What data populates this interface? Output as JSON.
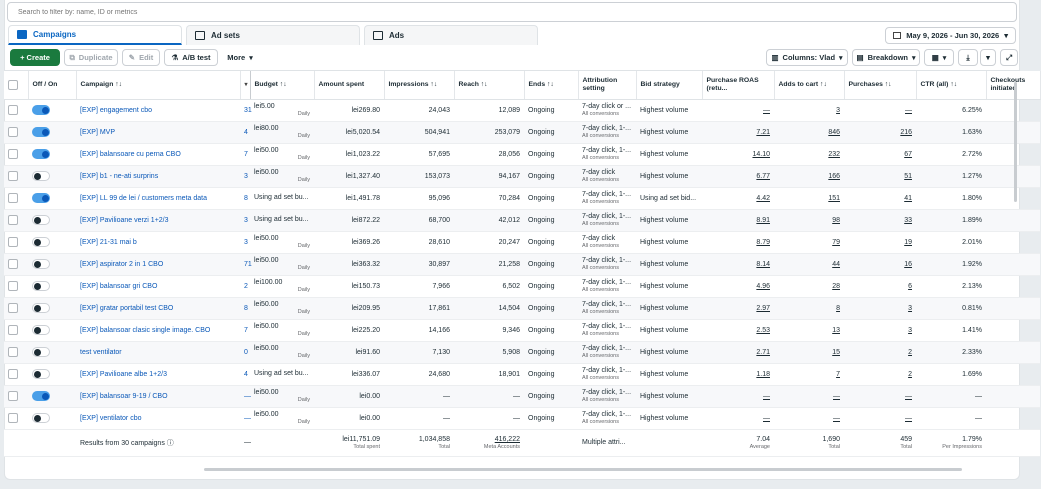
{
  "filter": {
    "placeholder": "Search to filter by: name, ID or metrics"
  },
  "tabs": [
    {
      "label": "Campaigns"
    },
    {
      "label": "Ad sets"
    },
    {
      "label": "Ads"
    }
  ],
  "date_range": "May 9, 2026 - Jun 30, 2026",
  "toolbar": {
    "create": "+ Create",
    "duplicate": "Duplicate",
    "edit": "Edit",
    "ab_test": "A/B test",
    "more": "More",
    "columns": "Columns: Vlad",
    "breakdown": "Breakdown"
  },
  "columns": {
    "off_on": "Off / On",
    "campaign": "Campaign ↑↓",
    "budget": "Budget ↑↓",
    "amount_spent": "Amount spent",
    "impressions": "Impressions ↑↓",
    "reach": "Reach ↑↓",
    "ends": "Ends ↑↓",
    "attribution": "Attribution setting",
    "bid_strategy": "Bid strategy",
    "purchase_roas": "Purchase ROAS (retu...",
    "adds_to_cart": "Adds to cart ↑↓",
    "purchases": "Purchases ↑↓",
    "ctr": "CTR (all) ↑↓",
    "checkouts": "Checkouts initiated"
  },
  "rows": [
    {
      "on": true,
      "name": "[EXP] engagement cbo",
      "trunc": "31",
      "budget": "lei5.00",
      "budget_sub": "Daily",
      "spent": "lei269.80",
      "impressions": "24,043",
      "reach": "12,089",
      "ends": "Ongoing",
      "attr": "7-day click or ...",
      "attr_sub": "All conversions",
      "bid": "Highest volume",
      "roas": "—",
      "atc": "3",
      "purchases": "—",
      "ctr": "6.25%"
    },
    {
      "on": true,
      "name": "[EXP] MVP",
      "trunc": "4",
      "budget": "lei80.00",
      "budget_sub": "Daily",
      "spent": "lei5,020.54",
      "impressions": "504,941",
      "reach": "253,079",
      "ends": "Ongoing",
      "attr": "7-day click, 1-...",
      "attr_sub": "All conversions",
      "bid": "Highest volume",
      "roas": "7.21",
      "atc": "846",
      "purchases": "216",
      "ctr": "1.63%"
    },
    {
      "on": true,
      "name": "[EXP] balansoare cu perna CBO",
      "trunc": "7",
      "budget": "lei50.00",
      "budget_sub": "Daily",
      "spent": "lei1,023.22",
      "impressions": "57,695",
      "reach": "28,056",
      "ends": "Ongoing",
      "attr": "7-day click, 1-...",
      "attr_sub": "All conversions",
      "bid": "Highest volume",
      "roas": "14.10",
      "atc": "232",
      "purchases": "67",
      "ctr": "2.72%"
    },
    {
      "on": false,
      "name": "[EXP] b1 - ne-ati surprins",
      "trunc": "3",
      "budget": "lei50.00",
      "budget_sub": "Daily",
      "spent": "lei1,327.40",
      "impressions": "153,073",
      "reach": "94,167",
      "ends": "Ongoing",
      "attr": "7-day click",
      "attr_sub": "All conversions",
      "bid": "Highest volume",
      "roas": "6.77",
      "atc": "166",
      "purchases": "51",
      "ctr": "1.27%"
    },
    {
      "on": true,
      "name": "[EXP] LL 99 de lei / customers meta data",
      "trunc": "8",
      "budget": "Using ad set bu...",
      "budget_sub": "",
      "spent": "lei1,491.78",
      "impressions": "95,096",
      "reach": "70,284",
      "ends": "Ongoing",
      "attr": "7-day click, 1-...",
      "attr_sub": "All conversions",
      "bid": "Using ad set bid...",
      "roas": "4.42",
      "atc": "151",
      "purchases": "41",
      "ctr": "1.80%"
    },
    {
      "on": false,
      "name": "[EXP] Pavilioane verzi 1+2/3",
      "trunc": "3",
      "budget": "Using ad set bu...",
      "budget_sub": "",
      "spent": "lei872.22",
      "impressions": "68,700",
      "reach": "42,012",
      "ends": "Ongoing",
      "attr": "7-day click, 1-...",
      "attr_sub": "All conversions",
      "bid": "Highest volume",
      "roas": "8.91",
      "atc": "98",
      "purchases": "33",
      "ctr": "1.89%"
    },
    {
      "on": false,
      "name": "[EXP] 21-31 mai b",
      "trunc": "3",
      "budget": "lei50.00",
      "budget_sub": "Daily",
      "spent": "lei369.26",
      "impressions": "28,610",
      "reach": "20,247",
      "ends": "Ongoing",
      "attr": "7-day click",
      "attr_sub": "All conversions",
      "bid": "Highest volume",
      "roas": "8.79",
      "atc": "79",
      "purchases": "19",
      "ctr": "2.01%"
    },
    {
      "on": false,
      "name": "[EXP] aspirator 2 in 1 CBO",
      "trunc": "71",
      "budget": "lei50.00",
      "budget_sub": "Daily",
      "spent": "lei363.32",
      "impressions": "30,897",
      "reach": "21,258",
      "ends": "Ongoing",
      "attr": "7-day click, 1-...",
      "attr_sub": "All conversions",
      "bid": "Highest volume",
      "roas": "8.14",
      "atc": "44",
      "purchases": "16",
      "ctr": "1.92%"
    },
    {
      "on": false,
      "name": "[EXP] balansoar gri CBO",
      "trunc": "2",
      "budget": "lei100.00",
      "budget_sub": "Daily",
      "spent": "lei150.73",
      "impressions": "7,966",
      "reach": "6,502",
      "ends": "Ongoing",
      "attr": "7-day click, 1-...",
      "attr_sub": "All conversions",
      "bid": "Highest volume",
      "roas": "4.96",
      "atc": "28",
      "purchases": "6",
      "ctr": "2.13%"
    },
    {
      "on": false,
      "name": "[EXP] gratar portabil test CBO",
      "trunc": "8",
      "budget": "lei50.00",
      "budget_sub": "Daily",
      "spent": "lei209.95",
      "impressions": "17,861",
      "reach": "14,504",
      "ends": "Ongoing",
      "attr": "7-day click, 1-...",
      "attr_sub": "All conversions",
      "bid": "Highest volume",
      "roas": "2.97",
      "atc": "8",
      "purchases": "3",
      "ctr": "0.81%"
    },
    {
      "on": false,
      "name": "[EXP] balansoar clasic single image. CBO",
      "trunc": "7",
      "budget": "lei50.00",
      "budget_sub": "Daily",
      "spent": "lei225.20",
      "impressions": "14,166",
      "reach": "9,346",
      "ends": "Ongoing",
      "attr": "7-day click, 1-...",
      "attr_sub": "All conversions",
      "bid": "Highest volume",
      "roas": "2.53",
      "atc": "13",
      "purchases": "3",
      "ctr": "1.41%"
    },
    {
      "on": false,
      "name": "test ventilator",
      "trunc": "0",
      "budget": "lei50.00",
      "budget_sub": "Daily",
      "spent": "lei91.60",
      "impressions": "7,130",
      "reach": "5,908",
      "ends": "Ongoing",
      "attr": "7-day click, 1-...",
      "attr_sub": "All conversions",
      "bid": "Highest volume",
      "roas": "2.71",
      "atc": "15",
      "purchases": "2",
      "ctr": "2.33%"
    },
    {
      "on": false,
      "name": "[EXP] Pavilioane albe 1+2/3",
      "trunc": "4",
      "budget": "Using ad set bu...",
      "budget_sub": "",
      "spent": "lei336.07",
      "impressions": "24,680",
      "reach": "18,901",
      "ends": "Ongoing",
      "attr": "7-day click, 1-...",
      "attr_sub": "All conversions",
      "bid": "Highest volume",
      "roas": "1.18",
      "atc": "7",
      "purchases": "2",
      "ctr": "1.69%"
    },
    {
      "on": true,
      "name": "[EXP] balansoar 9-19 / CBO",
      "trunc": "—",
      "budget": "lei50.00",
      "budget_sub": "Daily",
      "spent": "lei0.00",
      "impressions": "—",
      "reach": "—",
      "ends": "Ongoing",
      "attr": "7-day click, 1-...",
      "attr_sub": "All conversions",
      "bid": "Highest volume",
      "roas": "—",
      "atc": "—",
      "purchases": "—",
      "ctr": "—"
    },
    {
      "on": false,
      "name": "[EXP] ventilator cbo",
      "trunc": "—",
      "budget": "lei50.00",
      "budget_sub": "Daily",
      "spent": "lei0.00",
      "impressions": "—",
      "reach": "—",
      "ends": "Ongoing",
      "attr": "7-day click, 1-...",
      "attr_sub": "All conversions",
      "bid": "Highest volume",
      "roas": "—",
      "atc": "—",
      "purchases": "—",
      "ctr": "—"
    }
  ],
  "footer": {
    "label": "Results from 30 campaigns",
    "trunc": "—",
    "spent": "lei11,751.09",
    "spent_sub": "Total spent",
    "impressions": "1,034,858",
    "impressions_sub": "Total",
    "reach": "416,222",
    "reach_sub": "Meta Accounts",
    "attr": "Multiple attri...",
    "roas": "7.04",
    "roas_sub": "Average",
    "atc": "1,690",
    "atc_sub": "Total",
    "purchases": "459",
    "purchases_sub": "Total",
    "ctr": "1.79%",
    "ctr_sub": "Per Impressions"
  }
}
